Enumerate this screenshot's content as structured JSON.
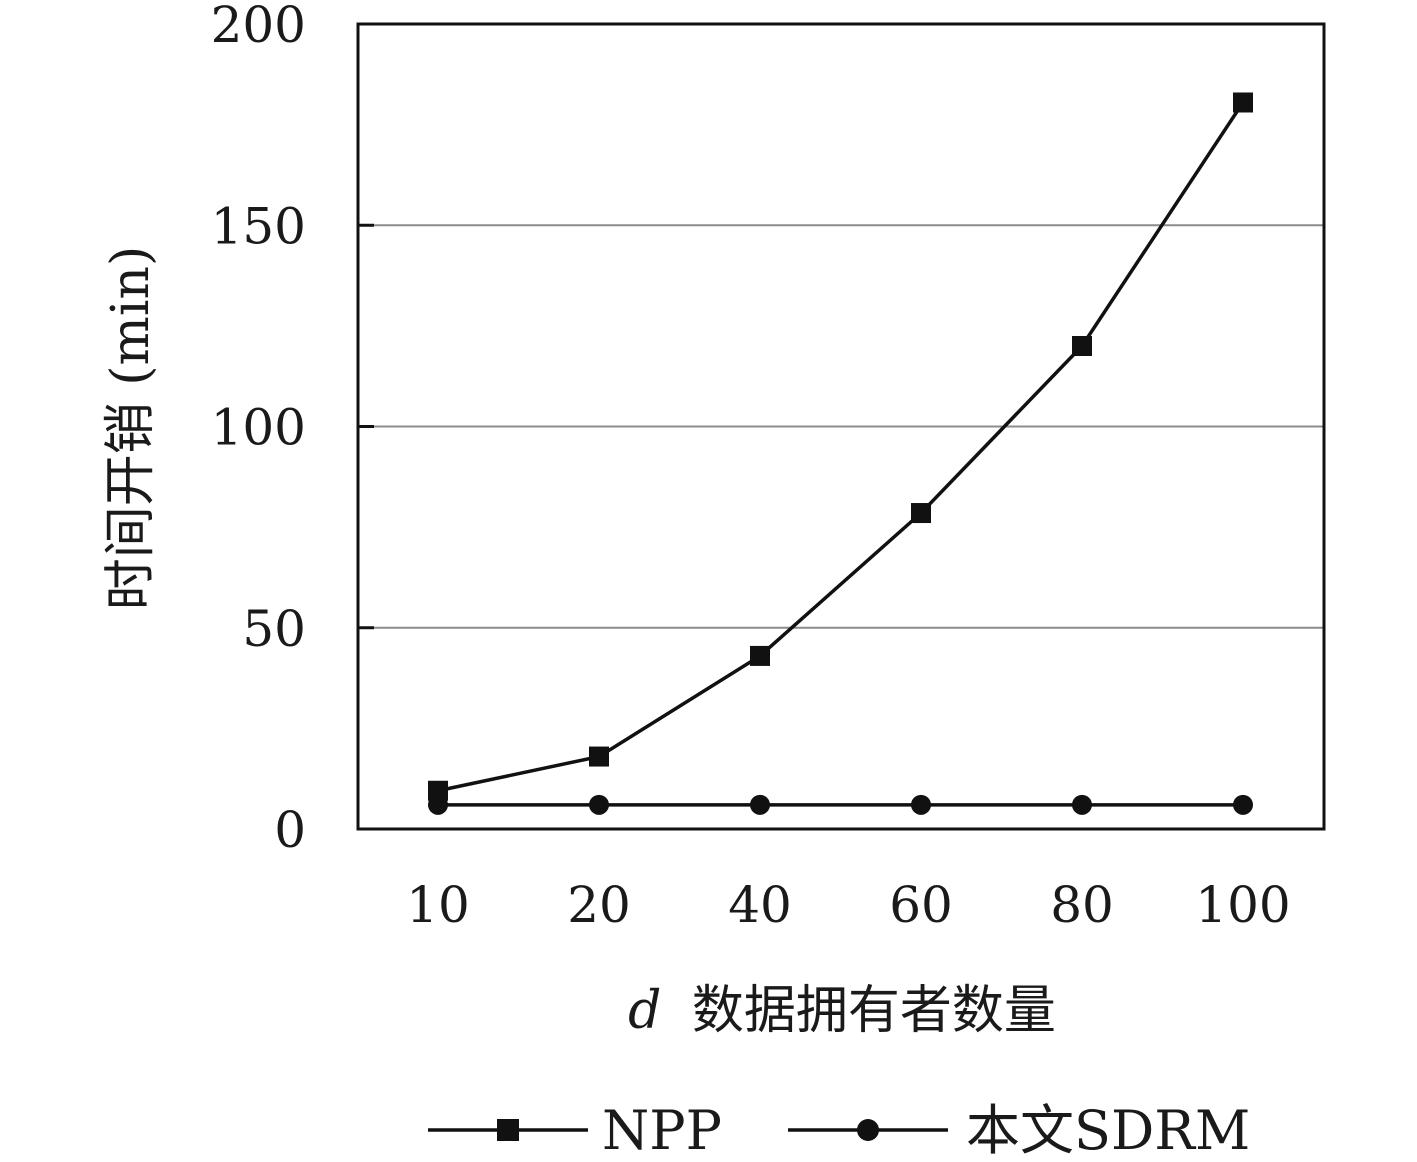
{
  "chart_data": {
    "type": "line",
    "categories": [
      "10",
      "20",
      "40",
      "60",
      "80",
      "100"
    ],
    "series": [
      {
        "name": "NPP",
        "marker": "square",
        "values": [
          9.5,
          18,
          43,
          78.5,
          120,
          180.5
        ],
        "color": "#111111"
      },
      {
        "name": "本文SDRM",
        "marker": "circle",
        "values": [
          6,
          6,
          6,
          6,
          6,
          6
        ],
        "color": "#111111"
      }
    ],
    "xlabel_var": "d",
    "xlabel_text": "数据拥有者数量",
    "ylabel": "时间开销 (min)",
    "ylim": [
      0,
      200
    ],
    "yticks": [
      "0",
      "50",
      "100",
      "150",
      "200"
    ],
    "grid": "horizontal",
    "legend": "bottom"
  }
}
